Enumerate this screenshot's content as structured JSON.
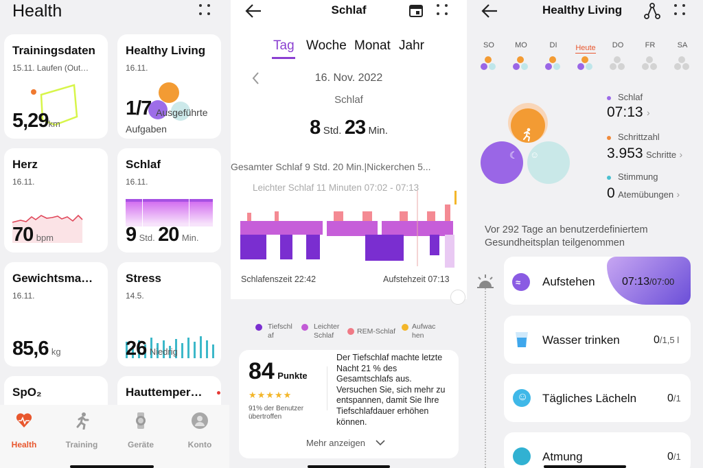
{
  "health": {
    "title": "Health",
    "cards": {
      "training": {
        "title": "Trainingsdaten",
        "date": "15.11. Laufen (Out…",
        "value": "5,29",
        "unit": "km"
      },
      "living": {
        "title": "Healthy Living",
        "date": "16.11.",
        "value": "1/7",
        "label1": "Ausgeführte",
        "label2": "Aufgaben"
      },
      "heart": {
        "title": "Herz",
        "date": "16.11.",
        "value": "70",
        "unit": "bpm"
      },
      "sleep": {
        "title": "Schlaf",
        "date": "16.11.",
        "h": "9",
        "hunit": "Std.",
        "m": "20",
        "munit": "Min."
      },
      "weight": {
        "title": "Gewichtsma…",
        "date": "16.11.",
        "value": "85,6",
        "unit": "kg"
      },
      "stress": {
        "title": "Stress",
        "date": "14.5.",
        "value": "26",
        "label": "Niedrig"
      },
      "spo2": {
        "title": "SpO₂"
      },
      "skin": {
        "title": "Hauttemper…"
      }
    },
    "nav": [
      {
        "label": "Health",
        "active": true
      },
      {
        "label": "Training"
      },
      {
        "label": "Geräte"
      },
      {
        "label": "Konto"
      }
    ],
    "accent": "#e8572e"
  },
  "sleep": {
    "title": "Schlaf",
    "tabs": [
      "Tag",
      "Woche",
      "Monat",
      "Jahr"
    ],
    "active_tab": "Tag",
    "date": "16. Nov. 2022",
    "sub": "Schlaf",
    "h": "8",
    "hunit": "Std.",
    "m": "23",
    "munit": "Min.",
    "total": "Gesamter Schlaf 9 Std. 20 Min.|Nickerchen 5...",
    "hover": "Leichter Schlaf 11 Minuten 07:02 - 07:13",
    "start": "Schlafenszeit 22:42",
    "end": "Aufstehzeit 07:13",
    "legend": [
      {
        "l1": "Tiefschl",
        "l2": "af",
        "color": "#7b2fd0"
      },
      {
        "l1": "Leichter",
        "l2": "Schlaf",
        "color": "#c25bd6"
      },
      {
        "l1": "REM-Schlaf",
        "l2": "",
        "color": "#f07a86"
      },
      {
        "l1": "Aufwac",
        "l2": "hen",
        "color": "#f3b62a"
      }
    ],
    "score": "84",
    "score_unit": "Punkte",
    "stars": "★★★★★",
    "pct": "91% der Benutzer",
    "pct2": "übertroffen",
    "advice": "Der Tiefschlaf machte letzte Nacht 21 % des Gesamtschlafs aus. Versuchen Sie, sich mehr zu entspannen, damit Sie Ihre Tiefschlafdauer erhöhen können.",
    "more": "Mehr anzeigen"
  },
  "living": {
    "title": "Healthy Living",
    "days": [
      "SO",
      "MO",
      "DI",
      "Heute",
      "DO",
      "FR",
      "SA"
    ],
    "stats": [
      {
        "label": "Schlaf",
        "value": "07:13",
        "unit": "",
        "color": "#9b6be8"
      },
      {
        "label": "Schrittzahl",
        "value": "3.953",
        "unit": "Schritte",
        "color": "#f08a3a"
      },
      {
        "label": "Stimmung",
        "value": "0",
        "unit": "Atemübungen",
        "color": "#4bc0d0"
      }
    ],
    "plan": "Vor 292 Tage an benutzerdefiniertem Gesundheitsplan teilgenommen",
    "tasks": [
      {
        "label": "Aufstehen",
        "val": "07:13",
        "of": "/07:00"
      },
      {
        "label": "Wasser trinken",
        "val": "0",
        "of": "/1,5 l"
      },
      {
        "label": "Tägliches Lächeln",
        "val": "0",
        "of": "/1"
      },
      {
        "label": "Atmung",
        "val": "0",
        "of": "/1"
      }
    ]
  }
}
